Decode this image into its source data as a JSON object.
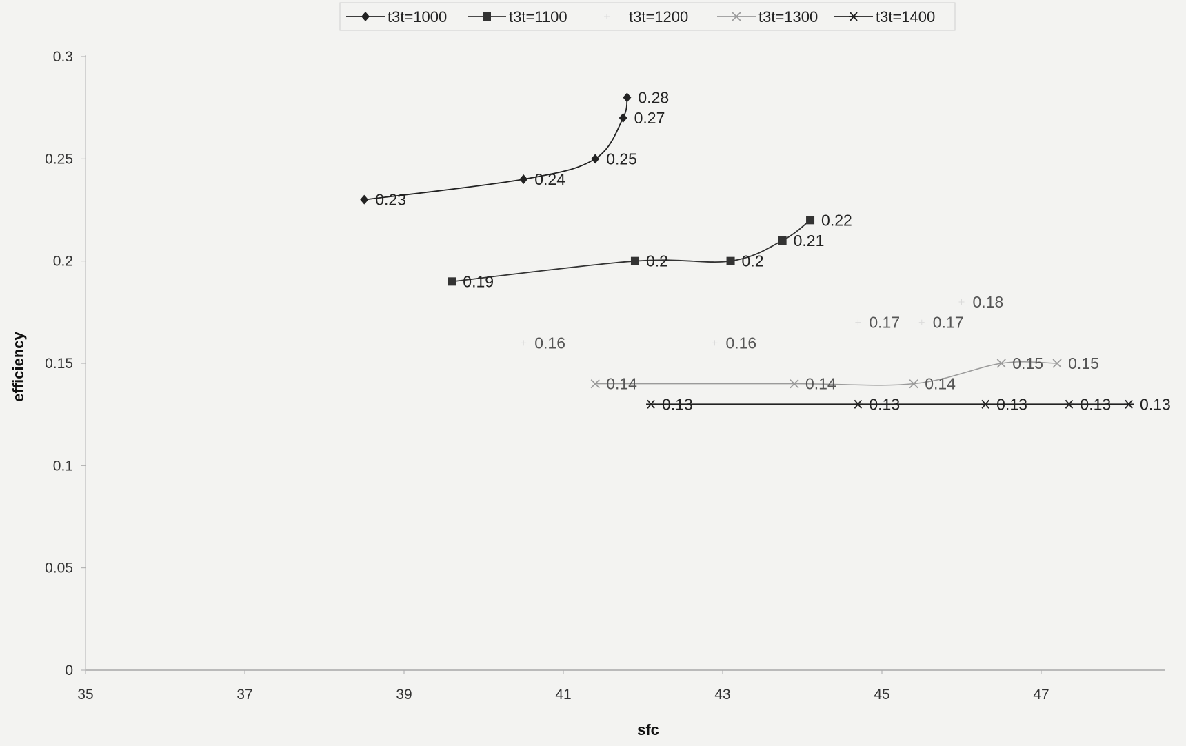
{
  "chart_data": {
    "type": "line",
    "title": "",
    "xlabel": "sfc",
    "ylabel": "efficiency",
    "xlim": [
      35,
      48.5
    ],
    "ylim": [
      0,
      0.3
    ],
    "x_ticks": [
      "35",
      "37",
      "39",
      "41",
      "43",
      "45",
      "47"
    ],
    "y_ticks": [
      "0",
      "0.05",
      "0.1",
      "0.15",
      "0.2",
      "0.25",
      "0.3"
    ],
    "grid": false,
    "legend": "top-center",
    "series": [
      {
        "name": "t3t=1000",
        "marker": "diamond",
        "color": "#222222",
        "points": [
          {
            "x": 38.5,
            "y": 0.23,
            "label": "0.23"
          },
          {
            "x": 40.5,
            "y": 0.24,
            "label": "0.24"
          },
          {
            "x": 41.4,
            "y": 0.25,
            "label": "0.25"
          },
          {
            "x": 41.75,
            "y": 0.27,
            "label": "0.27"
          },
          {
            "x": 41.8,
            "y": 0.28,
            "label": "0.28"
          }
        ]
      },
      {
        "name": "t3t=1100",
        "marker": "square",
        "color": "#333333",
        "points": [
          {
            "x": 39.6,
            "y": 0.19,
            "label": "0.19"
          },
          {
            "x": 41.9,
            "y": 0.2,
            "label": "0.2"
          },
          {
            "x": 43.1,
            "y": 0.2,
            "label": "0.2"
          },
          {
            "x": 43.75,
            "y": 0.21,
            "label": "0.21"
          },
          {
            "x": 44.1,
            "y": 0.22,
            "label": "0.22"
          }
        ]
      },
      {
        "name": "t3t=1200",
        "marker": "star-faint",
        "color": "#c4c4c4",
        "points": [
          {
            "x": 40.5,
            "y": 0.16,
            "label": "0.16"
          },
          {
            "x": 42.9,
            "y": 0.16,
            "label": "0.16"
          },
          {
            "x": 44.7,
            "y": 0.17,
            "label": "0.17"
          },
          {
            "x": 45.5,
            "y": 0.17,
            "label": "0.17"
          },
          {
            "x": 46.0,
            "y": 0.18,
            "label": "0.18"
          }
        ]
      },
      {
        "name": "t3t=1300",
        "marker": "x",
        "color": "#9a9a9a",
        "points": [
          {
            "x": 41.4,
            "y": 0.14,
            "label": "0.14"
          },
          {
            "x": 43.9,
            "y": 0.14,
            "label": "0.14"
          },
          {
            "x": 45.4,
            "y": 0.14,
            "label": "0.14"
          },
          {
            "x": 46.5,
            "y": 0.15,
            "label": "0.15"
          },
          {
            "x": 47.2,
            "y": 0.15,
            "label": "0.15"
          }
        ]
      },
      {
        "name": "t3t=1400",
        "marker": "asterisk",
        "color": "#222222",
        "points": [
          {
            "x": 42.1,
            "y": 0.13,
            "label": "0.13"
          },
          {
            "x": 44.7,
            "y": 0.13,
            "label": "0.13"
          },
          {
            "x": 46.3,
            "y": 0.13,
            "label": "0.13"
          },
          {
            "x": 47.35,
            "y": 0.13,
            "label": "0.13"
          },
          {
            "x": 48.1,
            "y": 0.13,
            "label": "0.13"
          }
        ]
      }
    ]
  }
}
